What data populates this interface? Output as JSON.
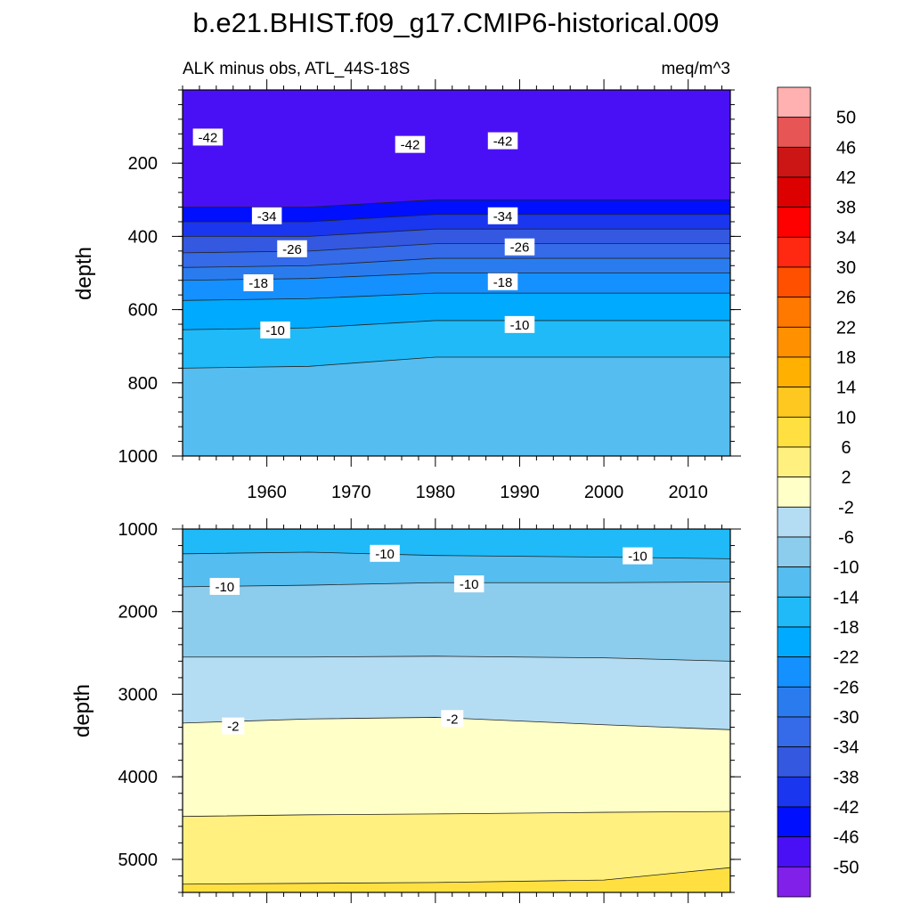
{
  "chart_data": {
    "type": "contour",
    "title": "b.e21.BHIST.f09_g17.CMIP6-historical.009",
    "subtitle_left": "ALK minus obs, ATL_44S-18S",
    "subtitle_right": "meq/m^3",
    "colorbar": {
      "levels": [
        "50",
        "46",
        "42",
        "38",
        "34",
        "30",
        "26",
        "22",
        "18",
        "14",
        "10",
        "6",
        "2",
        "-2",
        "-6",
        "-10",
        "-14",
        "-18",
        "-22",
        "-26",
        "-30",
        "-34",
        "-38",
        "-42",
        "-46",
        "-50"
      ],
      "colors": [
        "#FFB0B0",
        "#E85555",
        "#CC1515",
        "#DD0000",
        "#FF0000",
        "#FF2810",
        "#FF5000",
        "#FF7800",
        "#FF9000",
        "#FFB000",
        "#FFC820",
        "#FFE040",
        "#FFF080",
        "#FFFFC8",
        "#B4DCF2",
        "#8CCCEC",
        "#55BDF0",
        "#20BAF8",
        "#00AAFF",
        "#1590FF",
        "#2A7CEE",
        "#356AE8",
        "#3458E0",
        "#1A36EE",
        "#0010FF",
        "#4A10F5",
        "#8020E8"
      ]
    },
    "panels": [
      {
        "name": "upper",
        "ylabel": "depth",
        "xlim": [
          1950,
          2015
        ],
        "ylim": [
          0,
          1000
        ],
        "x_ticks": [
          1960,
          1970,
          1980,
          1990,
          2000,
          2010
        ],
        "y_ticks": [
          200,
          400,
          600,
          800,
          1000
        ],
        "contour_boundaries": [
          {
            "between": [
              -46,
              -42
            ],
            "depth": [
              320,
              320,
              300,
              300,
              300
            ]
          },
          {
            "between": [
              -42,
              -38
            ],
            "depth": [
              360,
              360,
              340,
              340,
              340
            ]
          },
          {
            "between": [
              -38,
              -34
            ],
            "depth": [
              400,
              400,
              380,
              380,
              380
            ]
          },
          {
            "between": [
              -34,
              -30
            ],
            "depth": [
              445,
              440,
              420,
              420,
              420
            ]
          },
          {
            "between": [
              -30,
              -26
            ],
            "depth": [
              485,
              480,
              460,
              460,
              460
            ]
          },
          {
            "between": [
              -26,
              -22
            ],
            "depth": [
              520,
              515,
              500,
              500,
              500
            ]
          },
          {
            "between": [
              -22,
              -18
            ],
            "depth": [
              575,
              570,
              555,
              555,
              555
            ]
          },
          {
            "between": [
              -18,
              -14
            ],
            "depth": [
              655,
              650,
              630,
              630,
              630
            ]
          },
          {
            "between": [
              -14,
              -10
            ],
            "depth": [
              760,
              755,
              730,
              730,
              730
            ]
          }
        ],
        "contour_years": [
          1950,
          1965,
          1980,
          2000,
          2015
        ],
        "labels": [
          {
            "text": "-42",
            "year": 1953,
            "depth": 130
          },
          {
            "text": "-42",
            "year": 1977,
            "depth": 150
          },
          {
            "text": "-42",
            "year": 1988,
            "depth": 140
          },
          {
            "text": "-34",
            "year": 1960,
            "depth": 345
          },
          {
            "text": "-34",
            "year": 1988,
            "depth": 345
          },
          {
            "text": "-26",
            "year": 1963,
            "depth": 435
          },
          {
            "text": "-26",
            "year": 1990,
            "depth": 430
          },
          {
            "text": "-18",
            "year": 1959,
            "depth": 528
          },
          {
            "text": "-18",
            "year": 1988,
            "depth": 525
          },
          {
            "text": "-10",
            "year": 1961,
            "depth": 657
          },
          {
            "text": "-10",
            "year": 1990,
            "depth": 642
          }
        ]
      },
      {
        "name": "lower",
        "ylabel": "depth",
        "xlim": [
          1950,
          2015
        ],
        "ylim": [
          1000,
          5400
        ],
        "x_ticks": [
          1960,
          1970,
          1980,
          1990,
          2000,
          2010
        ],
        "y_ticks": [
          1000,
          2000,
          3000,
          4000,
          5000
        ],
        "contour_boundaries": [
          {
            "between": [
              -14,
              -10
            ],
            "depth": [
              1300,
              1280,
              1320,
              1340,
              1360
            ]
          },
          {
            "between": [
              -10,
              -6
            ],
            "depth": [
              1700,
              1680,
              1650,
              1650,
              1640
            ]
          },
          {
            "between": [
              -6,
              -2
            ],
            "depth": [
              2550,
              2550,
              2540,
              2560,
              2600
            ]
          },
          {
            "between": [
              -2,
              2
            ],
            "depth": [
              3350,
              3300,
              3280,
              3370,
              3430
            ]
          },
          {
            "between": [
              2,
              6
            ],
            "depth": [
              4480,
              4460,
              4450,
              4430,
              4420
            ]
          },
          {
            "between": [
              6,
              10
            ],
            "depth": [
              5300,
              5290,
              5280,
              5250,
              5100
            ]
          }
        ],
        "contour_years": [
          1950,
          1965,
          1980,
          2000,
          2015
        ],
        "labels": [
          {
            "text": "-10",
            "year": 1974,
            "depth": 1300
          },
          {
            "text": "-10",
            "year": 2004,
            "depth": 1330
          },
          {
            "text": "-10",
            "year": 1955,
            "depth": 1700
          },
          {
            "text": "-10",
            "year": 1984,
            "depth": 1670
          },
          {
            "text": "-2",
            "year": 1956,
            "depth": 3390
          },
          {
            "text": "-2",
            "year": 1982,
            "depth": 3300
          }
        ]
      }
    ]
  }
}
